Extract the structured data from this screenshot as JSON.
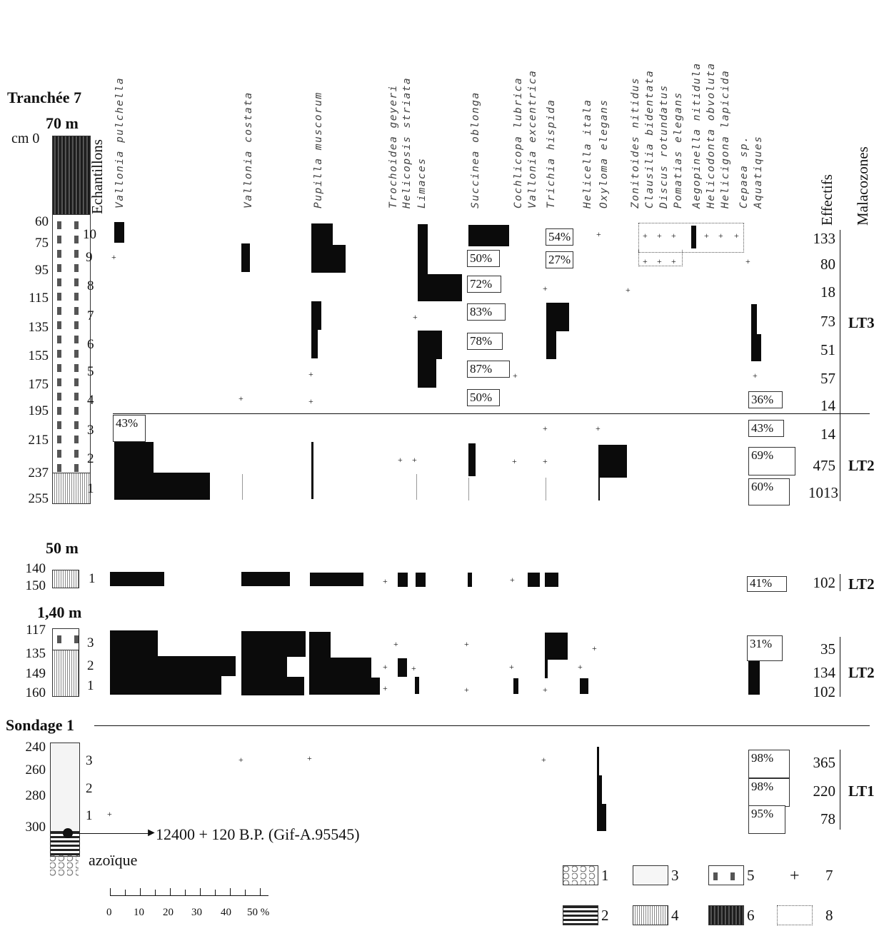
{
  "sections": {
    "tranchee": "Tranchée 7",
    "m70": "70 m",
    "m50": "50 m",
    "m140": "1,40 m",
    "sondage": "Sondage 1"
  },
  "axis_labels": {
    "echantillons": "Echantillons",
    "effectifs": "Effectifs",
    "malacozones": "Malacozones",
    "cm0": "cm 0"
  },
  "species": [
    "Vallonia pulchella",
    "Vallonia costata",
    "Pupilla muscorum",
    "Trochoidea geyeri",
    "Helicopsis striata",
    "Limaces",
    "Succinea oblonga",
    "Cochlicopa lubrica",
    "Vallonia excentrica",
    "Trichia hispida",
    "Helicella itala",
    "Oxyloma elegans",
    "Zonitoides nitidus",
    "Clausilia bidentata",
    "Discus rotundatus",
    "Pomatias elegans",
    "Aegopinella nitidula",
    "Helicodonta obvoluta",
    "Helicigona lapicida",
    "Cepaea sp.",
    "Aquatiques"
  ],
  "depths": {
    "t70": [
      "60",
      "75",
      "95",
      "115",
      "135",
      "155",
      "175",
      "195",
      "215",
      "237",
      "255"
    ],
    "t50": [
      "140",
      "150"
    ],
    "t140": [
      "117",
      "135",
      "149",
      "160"
    ],
    "s1": [
      "240",
      "260",
      "280",
      "300"
    ]
  },
  "samples": {
    "t70": [
      "10",
      "9",
      "8",
      "7",
      "6",
      "5",
      "4",
      "3",
      "2",
      "1"
    ],
    "t50": [
      "1"
    ],
    "t140": [
      "3",
      "2",
      "1"
    ],
    "s1": [
      "3",
      "2",
      "1"
    ]
  },
  "effectifs": {
    "t70": [
      "133",
      "80",
      "18",
      "73",
      "51",
      "57",
      "14",
      "14",
      "475",
      "1013"
    ],
    "t50": [
      "102"
    ],
    "t140": [
      "35",
      "134",
      "102"
    ],
    "s1": [
      "365",
      "220",
      "78"
    ]
  },
  "malacozones": {
    "lt3": "LT3",
    "lt2a": "LT2",
    "lt2b": "LT2",
    "lt2c": "LT2",
    "lt1": "LT1"
  },
  "percent_labels": {
    "p54": "54%",
    "p27": "27%",
    "p50a": "50%",
    "p72": "72%",
    "p83": "83%",
    "p78": "78%",
    "p87": "87%",
    "p50b": "50%",
    "p43a": "43%",
    "p36": "36%",
    "p43b": "43%",
    "p69": "69%",
    "p60": "60%",
    "p41": "41%",
    "p31": "31%",
    "p98a": "98%",
    "p98b": "98%",
    "p95": "95%"
  },
  "dating": "12400 + 120 B.P. (Gif-A.95545)",
  "azoique": "azoïque",
  "scale": {
    "ticks": [
      "0",
      "10",
      "20",
      "30",
      "40",
      "50 %"
    ]
  },
  "legend": [
    "1",
    "2",
    "3",
    "4",
    "5",
    "6",
    "7",
    "8"
  ],
  "legend_plus": "+"
}
